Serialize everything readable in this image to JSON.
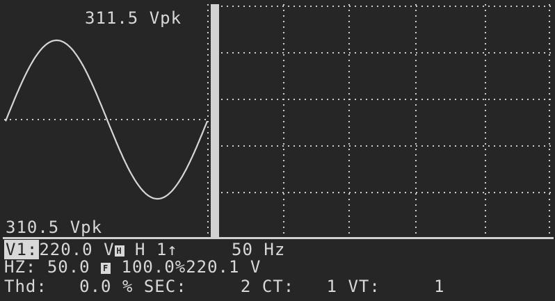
{
  "waveform": {
    "peak_top": "311.5 Vpk",
    "peak_bottom": "310.5 Vpk"
  },
  "status": {
    "row1": {
      "channel": "V1:",
      "voltage": "220.0",
      "unit_v": "V",
      "icon": "H",
      "range": "H 1",
      "arrow_icon": "up-arrow-icon",
      "frequency": "50 Hz"
    },
    "row2": {
      "hz_label": "HZ:",
      "hz_value": "50.0",
      "f_icon": "F",
      "percent": "100.0%220.1 V"
    },
    "row3": {
      "thd_label": "Thd:",
      "thd_value": "0.0 %",
      "sec_label": "SEC:",
      "sec_value": "2",
      "ct_label": "CT:",
      "ct_value": "1",
      "vt_label": "VT:",
      "vt_value": "1"
    }
  },
  "colors": {
    "background": "#262626",
    "foreground": "#d8d8d8"
  }
}
